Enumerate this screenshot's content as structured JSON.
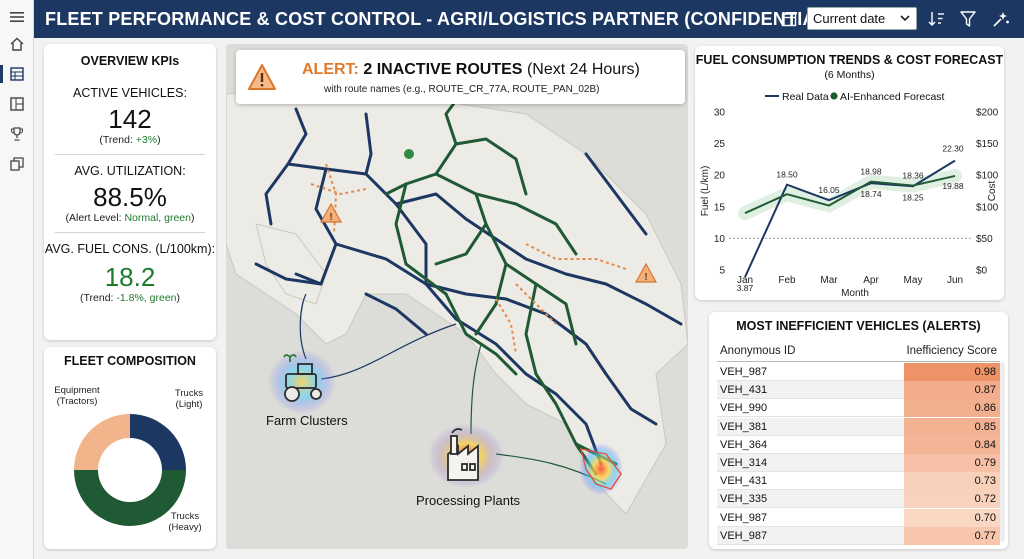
{
  "header": {
    "title": "FLEET PERFORMANCE & COST CONTROL - AGRI/LOGISTICS PARTNER (CONFIDENTIAL)",
    "date_filter": "Current date"
  },
  "nav": {
    "items": [
      "menu-icon",
      "home-icon",
      "report-icon",
      "pages-icon",
      "trophy-icon",
      "copy-icon"
    ]
  },
  "kpis": {
    "title": "OVERVIEW KPIs",
    "active_vehicles": {
      "label": "ACTIVE VEHICLES:",
      "value": "142",
      "sub_prefix": "(Trend: ",
      "sub_value": "+3%",
      "sub_suffix": ")"
    },
    "utilization": {
      "label": "AVG. UTILIZATION:",
      "value": "88.5%",
      "sub_prefix": "(Alert Level: ",
      "sub_value": "Normal, green",
      "sub_suffix": ")"
    },
    "fuel": {
      "label": "AVG. FUEL CONS. (L/100km):",
      "value": "18.2",
      "sub_prefix": "(Trend: ",
      "sub_value": "-1.8%, green",
      "sub_suffix": ")"
    }
  },
  "composition": {
    "title": "FLEET COMPOSITION",
    "labels": {
      "equipment": "Equipment\n(Tractors)",
      "light": "Trucks\n(Light)",
      "heavy": "Trucks\n(Heavy)"
    },
    "segments": [
      {
        "name": "Trucks (Light)",
        "fraction": 0.25,
        "color": "#1d3763"
      },
      {
        "name": "Trucks (Heavy)",
        "fraction": 0.5,
        "color": "#1f5a34"
      },
      {
        "name": "Equipment (Tractors)",
        "fraction": 0.25,
        "color": "#f2b48a"
      }
    ]
  },
  "alert": {
    "prefix": "ALERT:",
    "title": "2 INACTIVE ROUTES",
    "suffix": "(Next 24 Hours)",
    "sub": "with route names (e.g., ROUTE_CR_77A, ROUTE_PAN_02B)"
  },
  "map": {
    "farm_label": "Farm Clusters",
    "plant_label": "Processing Plants",
    "colors": {
      "route_blue": "#1d3763",
      "route_green": "#1f5a34",
      "inactive": "#e68a4a",
      "land": "#e8e6df",
      "sea": "#d4d4d1"
    }
  },
  "fuel_chart": {
    "title": "FUEL CONSUMPTION TRENDS & COST FORECAST",
    "subtitle": "(6 Months)",
    "legend_real": "Real Data",
    "legend_forecast": "AI-Enhanced Forecast",
    "ylabel_left": "Fuel (L/km)",
    "ylabel_right": "Cost",
    "xlabel": "Month"
  },
  "chart_data": {
    "type": "line",
    "categories": [
      "Jan",
      "Feb",
      "Mar",
      "Apr",
      "May",
      "Jun"
    ],
    "series": [
      {
        "name": "Real Data",
        "values": [
          3.87,
          18.5,
          16.05,
          18.74,
          18.25,
          22.3
        ],
        "color": "#1d3763"
      },
      {
        "name": "AI-Enhanced Forecast",
        "values": [
          14.0,
          17.0,
          15.2,
          18.98,
          18.36,
          19.88
        ],
        "color": "#1f5a34"
      }
    ],
    "data_labels": [
      {
        "series": 0,
        "index": 0,
        "text": "3.87"
      },
      {
        "series": 0,
        "index": 1,
        "text": "18.50"
      },
      {
        "series": 0,
        "index": 2,
        "text": "16.05"
      },
      {
        "series": 0,
        "index": 3,
        "text": "18.74"
      },
      {
        "series": 1,
        "index": 3,
        "text": "18.98"
      },
      {
        "series": 1,
        "index": 4,
        "text": "18.36"
      },
      {
        "series": 0,
        "index": 4,
        "text": "18.25"
      },
      {
        "series": 0,
        "index": 5,
        "text": "22.30"
      },
      {
        "series": 1,
        "index": 5,
        "text": "19.88"
      }
    ],
    "y_left": {
      "min": 5,
      "max": 30,
      "ticks": [
        "5",
        "10",
        "15",
        "20",
        "25",
        "30"
      ]
    },
    "y_right": {
      "ticks": [
        "$0",
        "$50",
        "$100",
        "$100",
        "$150",
        "$200"
      ]
    },
    "grid": true,
    "legend": "top"
  },
  "table": {
    "title": "MOST INEFFICIENT VEHICLES (ALERTS)",
    "col_id": "Anonymous ID",
    "col_score": "Inefficiency Score",
    "rows": [
      {
        "id": "VEH_987",
        "score": "0.98",
        "value": 0.98
      },
      {
        "id": "VEH_431",
        "score": "0.87",
        "value": 0.87
      },
      {
        "id": "VEH_990",
        "score": "0.86",
        "value": 0.86
      },
      {
        "id": "VEH_381",
        "score": "0.85",
        "value": 0.85
      },
      {
        "id": "VEH_364",
        "score": "0.84",
        "value": 0.84
      },
      {
        "id": "VEH_314",
        "score": "0.79",
        "value": 0.79
      },
      {
        "id": "VEH_431",
        "score": "0.73",
        "value": 0.73
      },
      {
        "id": "VEH_335",
        "score": "0.72",
        "value": 0.72
      },
      {
        "id": "VEH_987",
        "score": "0.70",
        "value": 0.7
      },
      {
        "id": "VEH_987",
        "score": "0.77",
        "value": 0.77
      }
    ]
  }
}
